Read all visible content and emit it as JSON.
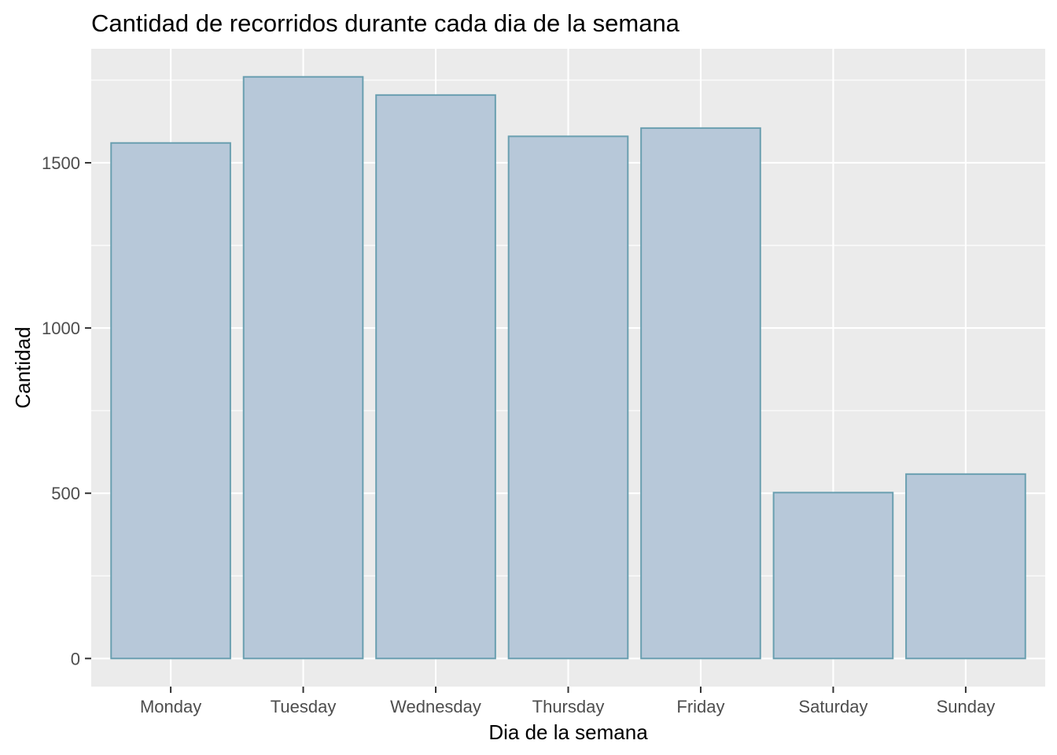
{
  "chart_data": {
    "type": "bar",
    "title": "Cantidad de recorridos durante cada dia de la semana",
    "xlabel": "Dia de la semana",
    "ylabel": "Cantidad",
    "categories": [
      "Monday",
      "Tuesday",
      "Wednesday",
      "Thursday",
      "Friday",
      "Saturday",
      "Sunday"
    ],
    "values": [
      1560,
      1760,
      1705,
      1580,
      1605,
      502,
      558
    ],
    "ylim": [
      -85,
      1845
    ],
    "yticks": [
      0,
      500,
      1000,
      1500
    ],
    "ytick_labels": [
      "0",
      "500",
      "1000",
      "1500"
    ],
    "grid": true,
    "legend": "none",
    "colors": {
      "panel": "#ebebeb",
      "grid": "#ffffff",
      "bar_fill": "#b7c8d9",
      "bar_stroke": "#6a9fb0",
      "tick": "#333333"
    }
  }
}
